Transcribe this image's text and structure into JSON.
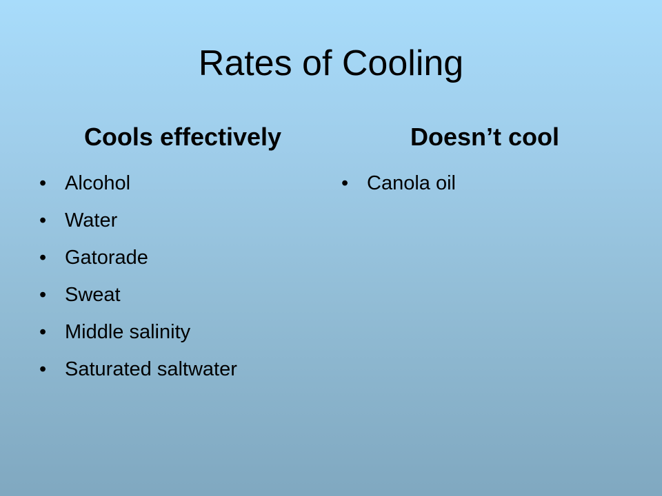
{
  "slide": {
    "title": "Rates of Cooling"
  },
  "columns": {
    "left": {
      "heading": "Cools effectively",
      "items": [
        "Alcohol",
        "Water",
        "Gatorade",
        "Sweat",
        "Middle salinity",
        "Saturated saltwater"
      ]
    },
    "right": {
      "heading": "Doesn’t cool",
      "items": [
        "Canola oil"
      ]
    }
  }
}
